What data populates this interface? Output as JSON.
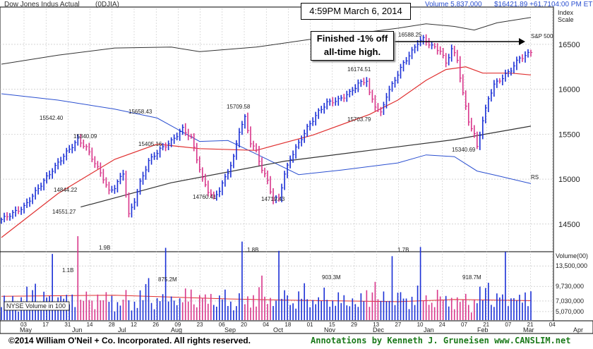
{
  "header": {
    "title": "Dow Jones Indus Actual",
    "ticker": "(0DJIA)",
    "volume": "Volume 5,837,000",
    "price": "$16421.89 +61.71",
    "time": "04:00 PM ET",
    "index_scale": "Index",
    "index_scale2": "Scale"
  },
  "timestamp": "4:59PM March 6, 2014",
  "annotation_lines": [
    "Finished -1% off",
    "all-time high."
  ],
  "labels": {
    "sp500": "S&P 500",
    "rs": "RS",
    "volume_axis": "Volume(00)",
    "nyse_volume": "NYSE Volume in 100"
  },
  "footer": {
    "copyright": "©2014 William O'Neil + Co. Incorporated. All rights reserved.",
    "annotations": "Annotations by Kenneth J. Gruneisen www.CANSLIM.net"
  },
  "colors": {
    "up_bar": "#1a2fd6",
    "down_bar": "#d8358a",
    "ma50": "#e03030",
    "ma200": "#333333",
    "rs_line": "#2a4fd0",
    "sp500": "#333333",
    "grid": "#bbbbbb"
  },
  "chart_data": {
    "type": "line",
    "price_axis": {
      "ticks": [
        14500,
        15000,
        15500,
        16000,
        16500
      ],
      "ylim": [
        14200,
        16900
      ]
    },
    "volume_axis": {
      "ticks": [
        "13,500,000",
        "9,730,000",
        "7,030,000",
        "5,070,000"
      ],
      "values": [
        13500000,
        9730000,
        7030000,
        5070000
      ],
      "ylim": [
        3500000,
        16000000
      ]
    },
    "x_axis": {
      "days": [
        "03",
        "17",
        "31",
        "14",
        "28",
        "12",
        "26",
        "09",
        "23",
        "06",
        "20",
        "04",
        "18",
        "01",
        "15",
        "29",
        "13",
        "27",
        "10",
        "24",
        "07",
        "21",
        "07",
        "21",
        "04"
      ],
      "months": [
        "May",
        "Jun",
        "Jul",
        "Aug",
        "Sep",
        "Oct",
        "Nov",
        "Dec",
        "Jan",
        "Feb",
        "Mar",
        "Apr"
      ]
    },
    "price_labels": [
      {
        "text": "15542.40",
        "value": 15542.4
      },
      {
        "text": "15340.09",
        "value": 15340.09
      },
      {
        "text": "14844.22",
        "value": 14844.22
      },
      {
        "text": "14551.27",
        "value": 14551.27
      },
      {
        "text": "15658.43",
        "value": 15658.43
      },
      {
        "text": "15405.16",
        "value": 15405.16
      },
      {
        "text": "14760.41",
        "value": 14760.41
      },
      {
        "text": "15709.58",
        "value": 15709.58
      },
      {
        "text": "14719.43",
        "value": 14719.43
      },
      {
        "text": "16174.51",
        "value": 16174.51
      },
      {
        "text": "15703.79",
        "value": 15703.79
      },
      {
        "text": "16588.25",
        "value": 16588.25
      },
      {
        "text": "15340.69",
        "value": 15340.69
      }
    ],
    "volume_labels": [
      {
        "text": "1.1B",
        "value": 1100000000
      },
      {
        "text": "1.9B",
        "value": 1900000000
      },
      {
        "text": "875.2M",
        "value": 875200000
      },
      {
        "text": "1.8B",
        "value": 1800000000
      },
      {
        "text": "903.3M",
        "value": 903300000
      },
      {
        "text": "1.7B",
        "value": 1700000000
      },
      {
        "text": "918.7M",
        "value": 918700000
      }
    ],
    "anchors": [
      [
        0,
        14550
      ],
      [
        8,
        14690
      ],
      [
        15,
        14980
      ],
      [
        22,
        15260
      ],
      [
        27,
        15440
      ],
      [
        30,
        15350
      ],
      [
        33,
        15180
      ],
      [
        36,
        15010
      ],
      [
        38,
        14860
      ],
      [
        40,
        14910
      ],
      [
        43,
        15070
      ],
      [
        45,
        14600
      ],
      [
        47,
        14760
      ],
      [
        49,
        14960
      ],
      [
        52,
        15200
      ],
      [
        56,
        15330
      ],
      [
        60,
        15420
      ],
      [
        64,
        15560
      ],
      [
        67,
        15460
      ],
      [
        69,
        15230
      ],
      [
        71,
        15000
      ],
      [
        73,
        14870
      ],
      [
        75,
        14790
      ],
      [
        77,
        14880
      ],
      [
        80,
        15080
      ],
      [
        82,
        15240
      ],
      [
        84,
        15540
      ],
      [
        86,
        15680
      ],
      [
        88,
        15410
      ],
      [
        90,
        15310
      ],
      [
        92,
        15110
      ],
      [
        94,
        14980
      ],
      [
        96,
        14770
      ],
      [
        98,
        14790
      ],
      [
        100,
        15050
      ],
      [
        102,
        15230
      ],
      [
        105,
        15400
      ],
      [
        108,
        15570
      ],
      [
        112,
        15750
      ],
      [
        115,
        15850
      ],
      [
        119,
        15880
      ],
      [
        123,
        15960
      ],
      [
        126,
        16060
      ],
      [
        129,
        16100
      ],
      [
        130,
        15950
      ],
      [
        132,
        15820
      ],
      [
        134,
        15730
      ],
      [
        136,
        15930
      ],
      [
        139,
        16110
      ],
      [
        142,
        16290
      ],
      [
        145,
        16420
      ],
      [
        147,
        16520
      ],
      [
        149,
        16560
      ],
      [
        152,
        16480
      ],
      [
        155,
        16430
      ],
      [
        157,
        16290
      ],
      [
        159,
        16450
      ],
      [
        161,
        16330
      ],
      [
        163,
        15950
      ],
      [
        165,
        15650
      ],
      [
        167,
        15490
      ],
      [
        168,
        15360
      ],
      [
        170,
        15650
      ],
      [
        172,
        15900
      ],
      [
        174,
        16050
      ],
      [
        177,
        16130
      ],
      [
        180,
        16220
      ],
      [
        183,
        16350
      ],
      [
        185,
        16370
      ],
      [
        187,
        16420
      ]
    ],
    "ma50": [
      [
        0,
        14350
      ],
      [
        20,
        14840
      ],
      [
        40,
        15220
      ],
      [
        55,
        15390
      ],
      [
        70,
        15340
      ],
      [
        90,
        15320
      ],
      [
        110,
        15490
      ],
      [
        130,
        15720
      ],
      [
        140,
        15880
      ],
      [
        150,
        16100
      ],
      [
        157,
        16220
      ],
      [
        164,
        16250
      ],
      [
        170,
        16180
      ],
      [
        180,
        16180
      ],
      [
        187,
        16160
      ]
    ],
    "ma200": [
      [
        28,
        14690
      ],
      [
        60,
        14960
      ],
      [
        100,
        15200
      ],
      [
        130,
        15320
      ],
      [
        160,
        15440
      ],
      [
        187,
        15590
      ]
    ],
    "rs": [
      [
        0,
        15950
      ],
      [
        20,
        15880
      ],
      [
        40,
        15780
      ],
      [
        55,
        15680
      ],
      [
        70,
        15420
      ],
      [
        80,
        15430
      ],
      [
        90,
        15280
      ],
      [
        105,
        15050
      ],
      [
        120,
        15100
      ],
      [
        140,
        15180
      ],
      [
        150,
        15270
      ],
      [
        160,
        15250
      ],
      [
        168,
        15090
      ],
      [
        175,
        15040
      ],
      [
        187,
        14950
      ]
    ],
    "sp500": [
      [
        0,
        16280
      ],
      [
        20,
        16380
      ],
      [
        40,
        16460
      ],
      [
        60,
        16470
      ],
      [
        70,
        16420
      ],
      [
        90,
        16470
      ],
      [
        110,
        16560
      ],
      [
        130,
        16640
      ],
      [
        140,
        16680
      ],
      [
        150,
        16730
      ],
      [
        160,
        16700
      ],
      [
        167,
        16660
      ],
      [
        175,
        16740
      ],
      [
        187,
        16800
      ]
    ],
    "volume_base": [
      5.9,
      7.4,
      6.1,
      6.6,
      8.3,
      6.9,
      5.7,
      7.7,
      6.3,
      8.9,
      6.5,
      9.4,
      11.0,
      7.1,
      6.3,
      8.1,
      6.9,
      7.6,
      16.1,
      6.7,
      8.3,
      7.9,
      6.8,
      7.4,
      6.1,
      8.6,
      6.7,
      9.6,
      7.2,
      6.4,
      8.0,
      6.9,
      7.5,
      6.3,
      8.8,
      7.1,
      6.5,
      7.9,
      6.6,
      8.4
    ],
    "volume_ma": [
      [
        0,
        7.9
      ],
      [
        40,
        8.1
      ],
      [
        80,
        7.4
      ],
      [
        100,
        7.2
      ],
      [
        140,
        6.9
      ],
      [
        160,
        7.3
      ],
      [
        187,
        7.1
      ]
    ]
  }
}
